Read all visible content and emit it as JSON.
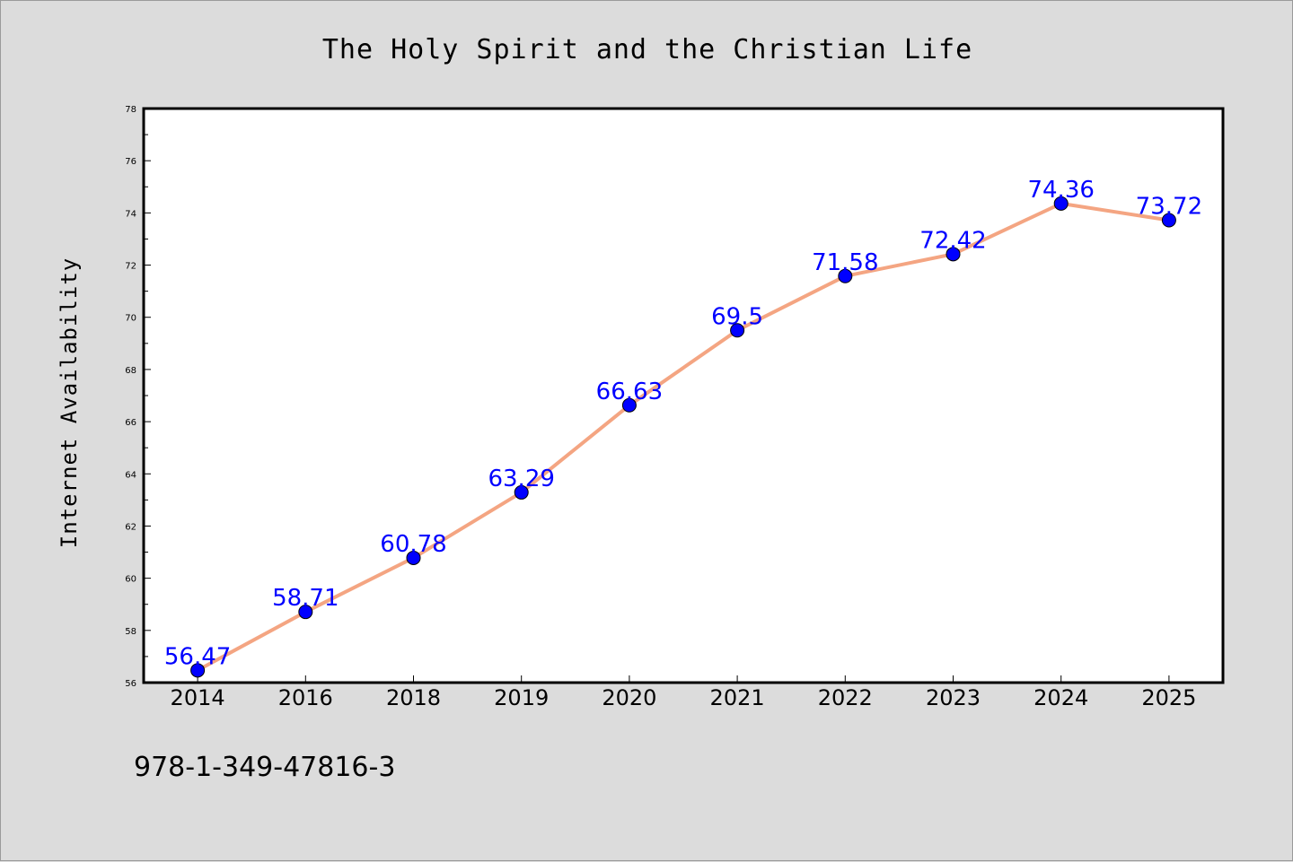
{
  "isbn": "978-1-349-47816-3",
  "colors": {
    "background": "#dcdcdc",
    "plot_background": "#ffffff",
    "line": "#f4a582",
    "marker": "#0000ff",
    "data_label": "#0000ff",
    "axis": "#000000"
  },
  "chart_data": {
    "type": "line",
    "title": "The Holy Spirit and the Christian Life",
    "xlabel": "",
    "ylabel": "Internet Availability",
    "categories": [
      "2014",
      "2016",
      "2018",
      "2019",
      "2020",
      "2021",
      "2022",
      "2023",
      "2024",
      "2025"
    ],
    "values": [
      56.47,
      58.71,
      60.78,
      63.29,
      66.63,
      69.5,
      71.58,
      72.42,
      74.36,
      73.72
    ],
    "data_labels": [
      "56.47",
      "58.71",
      "60.78",
      "63.29",
      "66.63",
      "69.5",
      "71.58",
      "72.42",
      "74.36",
      "73.72"
    ],
    "ylim": [
      56,
      78
    ],
    "yticks": [
      56,
      58,
      60,
      62,
      64,
      66,
      68,
      70,
      72,
      74,
      76,
      78
    ],
    "grid": false,
    "legend": "none"
  }
}
